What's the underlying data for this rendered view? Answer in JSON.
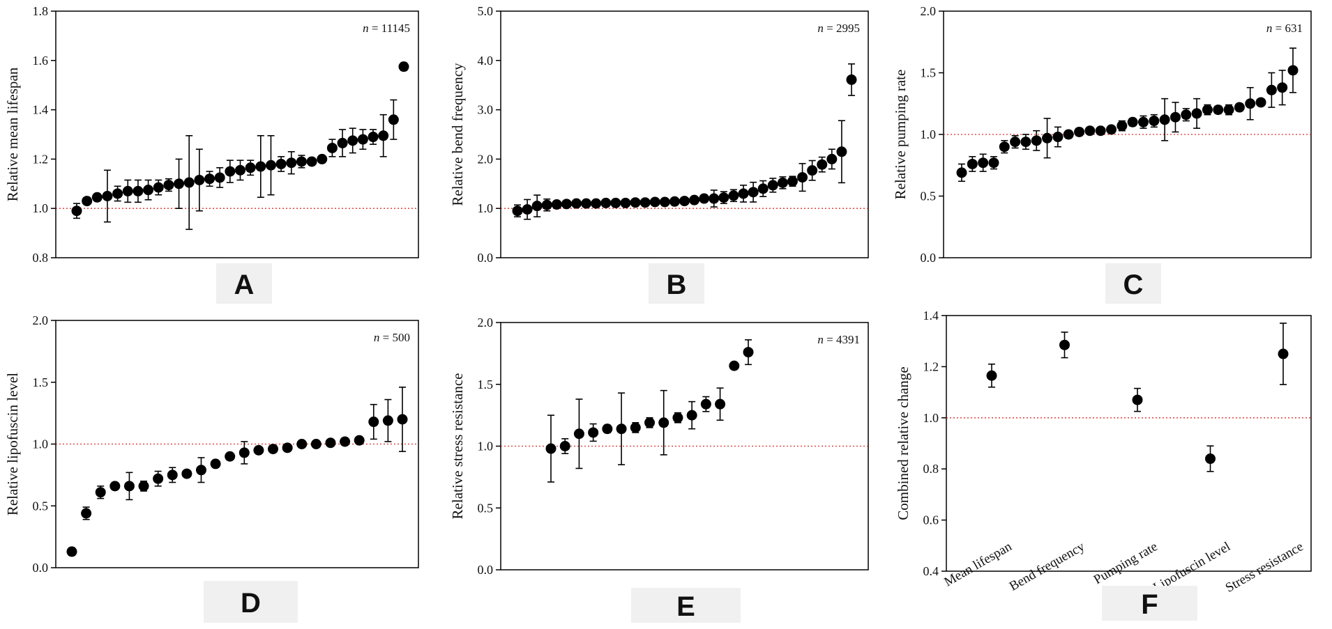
{
  "colors": {
    "point": "#000000",
    "reference_line": "#d9302c",
    "frame": "#000000",
    "letter_bg": "#f0f0f0"
  },
  "chart_data": [
    {
      "panel": "A",
      "type": "scatter",
      "ylabel": "Relative mean lifespan",
      "ylim": [
        0.8,
        1.8
      ],
      "yticks": [
        "0.8",
        "1.0",
        "1.2",
        "1.4",
        "1.6",
        "1.8"
      ],
      "reference_line": 1.0,
      "n_label": {
        "prefix": "n",
        "text": " = 11145"
      },
      "points": [
        [
          0.99,
          0.03
        ],
        [
          1.03,
          0.0
        ],
        [
          1.045,
          0.0
        ],
        [
          1.05,
          0.105
        ],
        [
          1.06,
          0.03
        ],
        [
          1.07,
          0.045
        ],
        [
          1.07,
          0.045
        ],
        [
          1.075,
          0.04
        ],
        [
          1.085,
          0.03
        ],
        [
          1.095,
          0.025
        ],
        [
          1.1,
          0.1
        ],
        [
          1.105,
          0.19
        ],
        [
          1.115,
          0.125
        ],
        [
          1.12,
          0.03
        ],
        [
          1.125,
          0.04
        ],
        [
          1.15,
          0.045
        ],
        [
          1.155,
          0.04
        ],
        [
          1.165,
          0.03
        ],
        [
          1.17,
          0.125
        ],
        [
          1.175,
          0.12
        ],
        [
          1.18,
          0.03
        ],
        [
          1.185,
          0.045
        ],
        [
          1.19,
          0.025
        ],
        [
          1.19,
          0.0
        ],
        [
          1.2,
          0.0
        ],
        [
          1.245,
          0.035
        ],
        [
          1.265,
          0.055
        ],
        [
          1.275,
          0.05
        ],
        [
          1.28,
          0.04
        ],
        [
          1.29,
          0.03
        ],
        [
          1.295,
          0.085
        ],
        [
          1.36,
          0.08
        ],
        [
          1.575,
          0.015
        ]
      ]
    },
    {
      "panel": "B",
      "type": "scatter",
      "ylabel": "Relative bend frequency",
      "ylim": [
        0.0,
        5.0
      ],
      "yticks": [
        "0.0",
        "1.0",
        "2.0",
        "3.0",
        "4.0",
        "5.0"
      ],
      "reference_line": 1.0,
      "n_label": {
        "prefix": "n",
        "text": " = 2995"
      },
      "points": [
        [
          0.95,
          0.12
        ],
        [
          0.98,
          0.2
        ],
        [
          1.05,
          0.22
        ],
        [
          1.07,
          0.12
        ],
        [
          1.08,
          0.05
        ],
        [
          1.09,
          0.04
        ],
        [
          1.1,
          0.03
        ],
        [
          1.1,
          0.04
        ],
        [
          1.1,
          0.04
        ],
        [
          1.11,
          0.04
        ],
        [
          1.11,
          0.03
        ],
        [
          1.11,
          0.04
        ],
        [
          1.12,
          0.03
        ],
        [
          1.12,
          0.03
        ],
        [
          1.13,
          0.04
        ],
        [
          1.13,
          0.05
        ],
        [
          1.14,
          0.04
        ],
        [
          1.15,
          0.05
        ],
        [
          1.17,
          0.06
        ],
        [
          1.2,
          0.07
        ],
        [
          1.2,
          0.17
        ],
        [
          1.22,
          0.12
        ],
        [
          1.26,
          0.12
        ],
        [
          1.3,
          0.17
        ],
        [
          1.33,
          0.2
        ],
        [
          1.4,
          0.16
        ],
        [
          1.47,
          0.14
        ],
        [
          1.52,
          0.12
        ],
        [
          1.55,
          0.1
        ],
        [
          1.63,
          0.28
        ],
        [
          1.77,
          0.2
        ],
        [
          1.89,
          0.15
        ],
        [
          2.0,
          0.2
        ],
        [
          2.15,
          0.63
        ],
        [
          3.61,
          0.32
        ]
      ]
    },
    {
      "panel": "C",
      "type": "scatter",
      "ylabel": "Relative pumping rate",
      "ylim": [
        0.0,
        2.0
      ],
      "yticks": [
        "0.0",
        "0.5",
        "1.0",
        "1.5",
        "2.0"
      ],
      "reference_line": 1.0,
      "n_label": {
        "prefix": "n",
        "text": " = 631"
      },
      "points": [
        [
          0.69,
          0.07
        ],
        [
          0.76,
          0.06
        ],
        [
          0.77,
          0.07
        ],
        [
          0.77,
          0.05
        ],
        [
          0.9,
          0.05
        ],
        [
          0.94,
          0.05
        ],
        [
          0.94,
          0.06
        ],
        [
          0.95,
          0.08
        ],
        [
          0.97,
          0.16
        ],
        [
          0.98,
          0.08
        ],
        [
          1.0,
          0.03
        ],
        [
          1.02,
          0.03
        ],
        [
          1.03,
          0.02
        ],
        [
          1.03,
          0.02
        ],
        [
          1.04,
          0.02
        ],
        [
          1.07,
          0.04
        ],
        [
          1.1,
          0.03
        ],
        [
          1.1,
          0.05
        ],
        [
          1.11,
          0.05
        ],
        [
          1.12,
          0.17
        ],
        [
          1.14,
          0.12
        ],
        [
          1.16,
          0.05
        ],
        [
          1.17,
          0.12
        ],
        [
          1.2,
          0.04
        ],
        [
          1.2,
          0.03
        ],
        [
          1.2,
          0.04
        ],
        [
          1.22,
          0.03
        ],
        [
          1.25,
          0.13
        ],
        [
          1.26,
          0.0
        ],
        [
          1.36,
          0.14
        ],
        [
          1.38,
          0.14
        ],
        [
          1.52,
          0.18
        ]
      ]
    },
    {
      "panel": "D",
      "type": "scatter",
      "ylabel": "Relative lipofuscin level",
      "ylim": [
        0.0,
        2.0
      ],
      "yticks": [
        "0.0",
        "0.5",
        "1.0",
        "1.5",
        "2.0"
      ],
      "reference_line": 1.0,
      "n_label": {
        "prefix": "n",
        "text": " = 500"
      },
      "points": [
        [
          0.13,
          0.03
        ],
        [
          0.44,
          0.05
        ],
        [
          0.61,
          0.05
        ],
        [
          0.66,
          0.0
        ],
        [
          0.66,
          0.11
        ],
        [
          0.66,
          0.04
        ],
        [
          0.72,
          0.06
        ],
        [
          0.75,
          0.06
        ],
        [
          0.76,
          0.0
        ],
        [
          0.79,
          0.1
        ],
        [
          0.84,
          0.0
        ],
        [
          0.9,
          0.0
        ],
        [
          0.93,
          0.09
        ],
        [
          0.95,
          0.0
        ],
        [
          0.96,
          0.0
        ],
        [
          0.97,
          0.0
        ],
        [
          1.0,
          0.0
        ],
        [
          1.0,
          0.0
        ],
        [
          1.01,
          0.0
        ],
        [
          1.02,
          0.0
        ],
        [
          1.03,
          0.0
        ],
        [
          1.18,
          0.14
        ],
        [
          1.19,
          0.17
        ],
        [
          1.2,
          0.26
        ]
      ]
    },
    {
      "panel": "E",
      "type": "scatter",
      "ylabel": "Relative stress resistance",
      "ylim": [
        0.0,
        2.0
      ],
      "yticks": [
        "0.0",
        "0.5",
        "1.0",
        "1.5",
        "2.0"
      ],
      "reference_line": 1.0,
      "n_label": {
        "prefix": "n",
        "text": " = 4391"
      },
      "points": [
        [
          0.98,
          0.27
        ],
        [
          1.0,
          0.06
        ],
        [
          1.1,
          0.28
        ],
        [
          1.11,
          0.07
        ],
        [
          1.14,
          0.03
        ],
        [
          1.14,
          0.29
        ],
        [
          1.15,
          0.04
        ],
        [
          1.19,
          0.04
        ],
        [
          1.19,
          0.26
        ],
        [
          1.23,
          0.04
        ],
        [
          1.25,
          0.11
        ],
        [
          1.34,
          0.06
        ],
        [
          1.34,
          0.13
        ],
        [
          1.65,
          0.0
        ],
        [
          1.76,
          0.1
        ]
      ]
    },
    {
      "panel": "F",
      "type": "scatter",
      "ylabel": "Combined relative change",
      "ylim": [
        0.4,
        1.4
      ],
      "yticks": [
        "0.4",
        "0.6",
        "0.8",
        "1.0",
        "1.2",
        "1.4"
      ],
      "reference_line": 1.0,
      "categories": [
        "Mean lifespan",
        "Bend frequency",
        "Pumping rate",
        "Lipofuscin level",
        "Stress resistance"
      ],
      "points": [
        [
          1.165,
          0.045
        ],
        [
          1.285,
          0.05
        ],
        [
          1.07,
          0.045
        ],
        [
          0.84,
          0.05
        ],
        [
          1.25,
          0.12
        ]
      ]
    }
  ]
}
